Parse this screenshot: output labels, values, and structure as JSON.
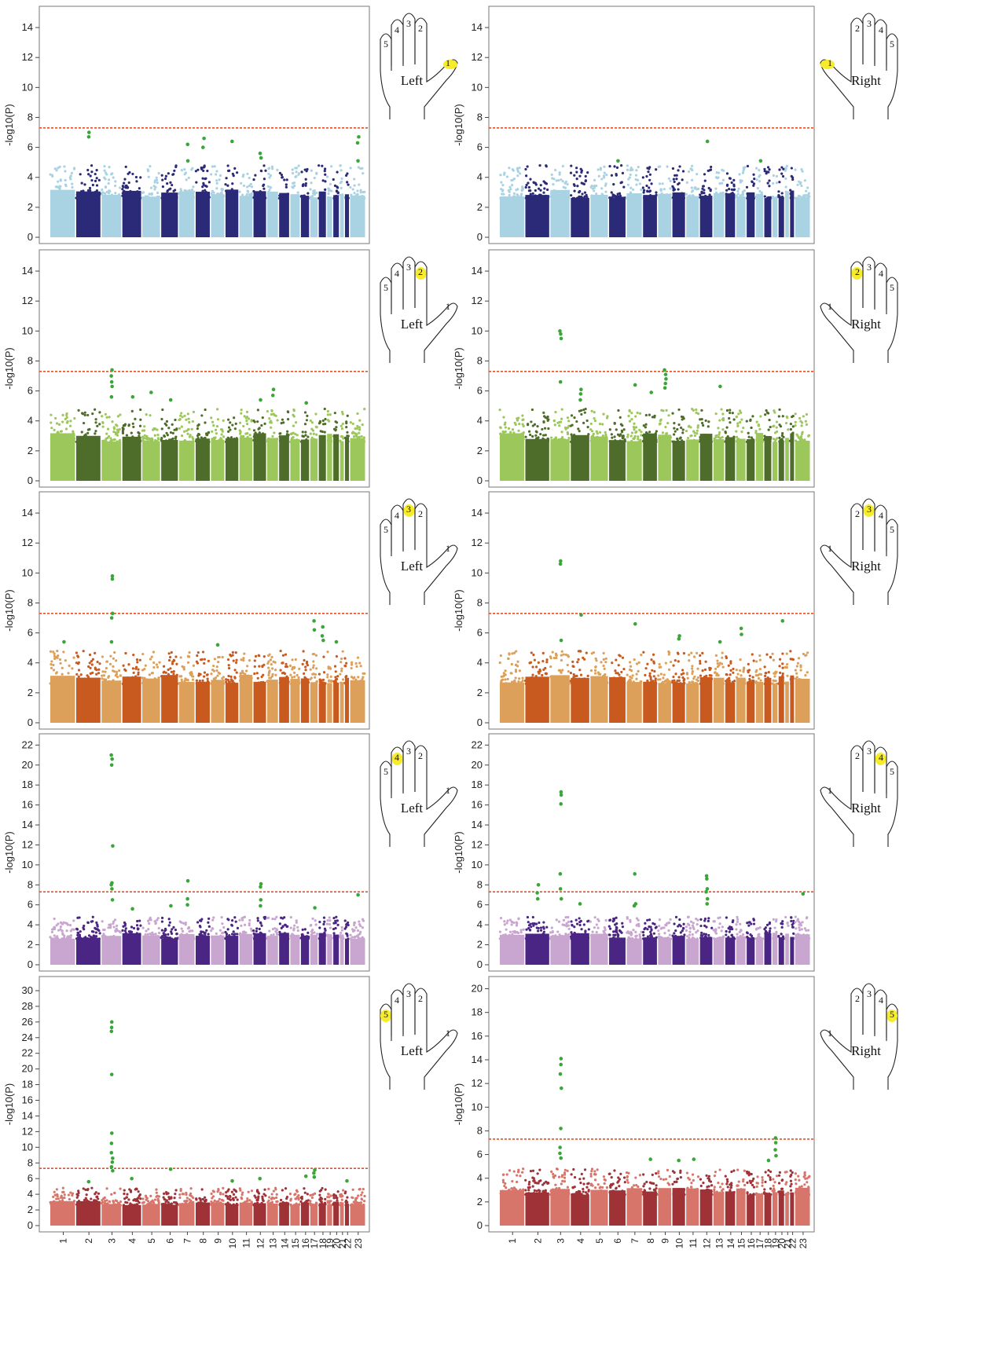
{
  "chromosomes": [
    "1",
    "2",
    "3",
    "4",
    "5",
    "6",
    "7",
    "8",
    "9",
    "10",
    "11",
    "12",
    "13",
    "14",
    "15",
    "16",
    "17",
    "18",
    "19",
    "20",
    "21",
    "22",
    "23"
  ],
  "threshold": 7.3,
  "ylabel": "-log10(P)",
  "palettes": {
    "digit1": {
      "light": "#a9d3e3",
      "dark": "#2a2a78"
    },
    "digit2": {
      "light": "#9cc75a",
      "dark": "#4e6d2a"
    },
    "digit3": {
      "light": "#dca05a",
      "dark": "#c95a1f"
    },
    "digit4": {
      "light": "#c9a6cf",
      "dark": "#4b2584"
    },
    "digit5": {
      "light": "#d8756a",
      "dark": "#9e3237"
    },
    "hit": "#3aa63a",
    "threshold_line": "#e0522a",
    "highlight": "#f7ec2c"
  },
  "hands": {
    "left": "Left",
    "right": "Right"
  },
  "chart_data": [
    {
      "type": "scatter",
      "digit": 1,
      "side": "Left",
      "ylabel": "-log10(P)",
      "ylim": [
        0,
        15
      ],
      "yticks": [
        0,
        2,
        4,
        6,
        8,
        10,
        12,
        14
      ],
      "threshold": 7.3,
      "peaks": [
        {
          "chr": 2,
          "y": 7.0
        },
        {
          "chr": 2,
          "y": 6.7
        },
        {
          "chr": 7,
          "y": 6.2
        },
        {
          "chr": 7,
          "y": 5.1
        },
        {
          "chr": 8,
          "y": 6.6
        },
        {
          "chr": 8,
          "y": 6.0
        },
        {
          "chr": 10,
          "y": 6.4
        },
        {
          "chr": 12,
          "y": 5.6
        },
        {
          "chr": 12,
          "y": 5.3
        },
        {
          "chr": 23,
          "y": 6.7
        },
        {
          "chr": 23,
          "y": 6.3
        },
        {
          "chr": 23,
          "y": 5.1
        }
      ]
    },
    {
      "type": "scatter",
      "digit": 1,
      "side": "Right",
      "ylabel": "-log10(P)",
      "ylim": [
        0,
        15
      ],
      "yticks": [
        0,
        2,
        4,
        6,
        8,
        10,
        12,
        14
      ],
      "threshold": 7.3,
      "peaks": [
        {
          "chr": 6,
          "y": 5.1
        },
        {
          "chr": 12,
          "y": 6.4
        },
        {
          "chr": 17,
          "y": 5.1
        }
      ]
    },
    {
      "type": "scatter",
      "digit": 2,
      "side": "Left",
      "ylabel": "-log10(P)",
      "ylim": [
        0,
        15
      ],
      "yticks": [
        0,
        2,
        4,
        6,
        8,
        10,
        12,
        14
      ],
      "threshold": 7.3,
      "peaks": [
        {
          "chr": 3,
          "y": 7.4
        },
        {
          "chr": 3,
          "y": 7.0
        },
        {
          "chr": 3,
          "y": 6.6
        },
        {
          "chr": 3,
          "y": 6.3
        },
        {
          "chr": 3,
          "y": 5.6
        },
        {
          "chr": 4,
          "y": 5.6
        },
        {
          "chr": 5,
          "y": 5.9
        },
        {
          "chr": 6,
          "y": 5.4
        },
        {
          "chr": 12,
          "y": 5.4
        },
        {
          "chr": 13,
          "y": 6.1
        },
        {
          "chr": 13,
          "y": 5.7
        },
        {
          "chr": 16,
          "y": 5.2
        }
      ]
    },
    {
      "type": "scatter",
      "digit": 2,
      "side": "Right",
      "ylabel": "-log10(P)",
      "ylim": [
        0,
        15
      ],
      "yticks": [
        0,
        2,
        4,
        6,
        8,
        10,
        12,
        14
      ],
      "threshold": 7.3,
      "peaks": [
        {
          "chr": 3,
          "y": 10.0
        },
        {
          "chr": 3,
          "y": 9.8
        },
        {
          "chr": 3,
          "y": 9.5
        },
        {
          "chr": 3,
          "y": 6.6
        },
        {
          "chr": 4,
          "y": 6.1
        },
        {
          "chr": 4,
          "y": 5.8
        },
        {
          "chr": 4,
          "y": 5.4
        },
        {
          "chr": 7,
          "y": 6.4
        },
        {
          "chr": 9,
          "y": 7.4
        },
        {
          "chr": 9,
          "y": 7.1
        },
        {
          "chr": 9,
          "y": 6.8
        },
        {
          "chr": 9,
          "y": 6.5
        },
        {
          "chr": 9,
          "y": 6.2
        },
        {
          "chr": 8,
          "y": 5.9
        },
        {
          "chr": 13,
          "y": 6.3
        }
      ]
    },
    {
      "type": "scatter",
      "digit": 3,
      "side": "Left",
      "ylabel": "-log10(P)",
      "ylim": [
        0,
        15
      ],
      "yticks": [
        0,
        2,
        4,
        6,
        8,
        10,
        12,
        14
      ],
      "threshold": 7.3,
      "peaks": [
        {
          "chr": 3,
          "y": 9.8
        },
        {
          "chr": 3,
          "y": 9.6
        },
        {
          "chr": 3,
          "y": 7.3
        },
        {
          "chr": 3,
          "y": 7.0
        },
        {
          "chr": 3,
          "y": 5.4
        },
        {
          "chr": 1,
          "y": 5.4
        },
        {
          "chr": 9,
          "y": 5.2
        },
        {
          "chr": 17,
          "y": 6.8
        },
        {
          "chr": 17,
          "y": 6.2
        },
        {
          "chr": 18,
          "y": 6.4
        },
        {
          "chr": 18,
          "y": 5.8
        },
        {
          "chr": 18,
          "y": 5.5
        },
        {
          "chr": 20,
          "y": 5.4
        }
      ]
    },
    {
      "type": "scatter",
      "digit": 3,
      "side": "Right",
      "ylabel": "-log10(P)",
      "ylim": [
        0,
        15
      ],
      "yticks": [
        0,
        2,
        4,
        6,
        8,
        10,
        12,
        14
      ],
      "threshold": 7.3,
      "peaks": [
        {
          "chr": 3,
          "y": 10.8
        },
        {
          "chr": 3,
          "y": 10.6
        },
        {
          "chr": 3,
          "y": 5.5
        },
        {
          "chr": 4,
          "y": 7.2
        },
        {
          "chr": 7,
          "y": 6.6
        },
        {
          "chr": 10,
          "y": 5.8
        },
        {
          "chr": 10,
          "y": 5.6
        },
        {
          "chr": 15,
          "y": 6.3
        },
        {
          "chr": 15,
          "y": 5.9
        },
        {
          "chr": 20,
          "y": 6.8
        },
        {
          "chr": 13,
          "y": 5.4
        }
      ]
    },
    {
      "type": "scatter",
      "digit": 4,
      "side": "Left",
      "ylabel": "-log10(P)",
      "ylim": [
        0,
        22.5
      ],
      "yticks": [
        0,
        2,
        4,
        6,
        8,
        10,
        12,
        14,
        16,
        18,
        20,
        22
      ],
      "threshold": 7.3,
      "peaks": [
        {
          "chr": 3,
          "y": 21.0
        },
        {
          "chr": 3,
          "y": 20.6
        },
        {
          "chr": 3,
          "y": 20.0
        },
        {
          "chr": 3,
          "y": 11.9
        },
        {
          "chr": 3,
          "y": 8.2
        },
        {
          "chr": 3,
          "y": 8.0
        },
        {
          "chr": 3,
          "y": 7.6
        },
        {
          "chr": 3,
          "y": 6.5
        },
        {
          "chr": 7,
          "y": 8.4
        },
        {
          "chr": 7,
          "y": 6.6
        },
        {
          "chr": 7,
          "y": 6.0
        },
        {
          "chr": 6,
          "y": 5.9
        },
        {
          "chr": 12,
          "y": 8.1
        },
        {
          "chr": 12,
          "y": 7.8
        },
        {
          "chr": 12,
          "y": 6.5
        },
        {
          "chr": 12,
          "y": 5.9
        },
        {
          "chr": 23,
          "y": 7.0
        },
        {
          "chr": 4,
          "y": 5.6
        },
        {
          "chr": 17,
          "y": 5.7
        }
      ]
    },
    {
      "type": "scatter",
      "digit": 4,
      "side": "Right",
      "ylabel": "-log10(P)",
      "ylim": [
        0,
        22.5
      ],
      "yticks": [
        0,
        2,
        4,
        6,
        8,
        10,
        12,
        14,
        16,
        18,
        20,
        22
      ],
      "threshold": 7.3,
      "peaks": [
        {
          "chr": 3,
          "y": 17.3
        },
        {
          "chr": 3,
          "y": 17.0
        },
        {
          "chr": 3,
          "y": 16.1
        },
        {
          "chr": 3,
          "y": 9.1
        },
        {
          "chr": 3,
          "y": 7.6
        },
        {
          "chr": 3,
          "y": 6.6
        },
        {
          "chr": 2,
          "y": 8.0
        },
        {
          "chr": 2,
          "y": 7.2
        },
        {
          "chr": 2,
          "y": 6.6
        },
        {
          "chr": 7,
          "y": 9.1
        },
        {
          "chr": 7,
          "y": 6.1
        },
        {
          "chr": 7,
          "y": 5.9
        },
        {
          "chr": 12,
          "y": 8.9
        },
        {
          "chr": 12,
          "y": 8.6
        },
        {
          "chr": 12,
          "y": 7.6
        },
        {
          "chr": 12,
          "y": 7.3
        },
        {
          "chr": 12,
          "y": 6.6
        },
        {
          "chr": 12,
          "y": 6.1
        },
        {
          "chr": 23,
          "y": 7.1
        },
        {
          "chr": 4,
          "y": 6.1
        }
      ]
    },
    {
      "type": "scatter",
      "digit": 5,
      "side": "Left",
      "ylabel": "-log10(P)",
      "ylim": [
        0,
        31
      ],
      "yticks": [
        0,
        2,
        4,
        6,
        8,
        10,
        12,
        14,
        16,
        18,
        20,
        22,
        24,
        26,
        28,
        30
      ],
      "threshold": 7.3,
      "peaks": [
        {
          "chr": 3,
          "y": 26.0
        },
        {
          "chr": 3,
          "y": 25.3
        },
        {
          "chr": 3,
          "y": 24.8
        },
        {
          "chr": 3,
          "y": 19.3
        },
        {
          "chr": 3,
          "y": 11.8
        },
        {
          "chr": 3,
          "y": 10.5
        },
        {
          "chr": 3,
          "y": 9.3
        },
        {
          "chr": 3,
          "y": 8.6
        },
        {
          "chr": 3,
          "y": 8.1
        },
        {
          "chr": 3,
          "y": 7.5
        },
        {
          "chr": 3,
          "y": 7.0
        },
        {
          "chr": 6,
          "y": 7.2
        },
        {
          "chr": 17,
          "y": 7.1
        },
        {
          "chr": 17,
          "y": 6.7
        },
        {
          "chr": 17,
          "y": 6.2
        },
        {
          "chr": 16,
          "y": 6.3
        },
        {
          "chr": 12,
          "y": 6.0
        },
        {
          "chr": 4,
          "y": 6.0
        },
        {
          "chr": 2,
          "y": 5.6
        },
        {
          "chr": 10,
          "y": 5.7
        },
        {
          "chr": 22,
          "y": 5.7
        }
      ]
    },
    {
      "type": "scatter",
      "digit": 5,
      "side": "Right",
      "ylabel": "-log10(P)",
      "ylim": [
        0,
        20.5
      ],
      "yticks": [
        0,
        2,
        4,
        6,
        8,
        10,
        12,
        14,
        16,
        18,
        20
      ],
      "threshold": 7.3,
      "peaks": [
        {
          "chr": 3,
          "y": 14.1
        },
        {
          "chr": 3,
          "y": 13.6
        },
        {
          "chr": 3,
          "y": 12.8
        },
        {
          "chr": 3,
          "y": 11.6
        },
        {
          "chr": 3,
          "y": 8.2
        },
        {
          "chr": 3,
          "y": 6.6
        },
        {
          "chr": 3,
          "y": 6.1
        },
        {
          "chr": 3,
          "y": 5.7
        },
        {
          "chr": 19,
          "y": 7.4
        },
        {
          "chr": 19,
          "y": 7.0
        },
        {
          "chr": 19,
          "y": 6.4
        },
        {
          "chr": 19,
          "y": 5.9
        },
        {
          "chr": 18,
          "y": 5.5
        },
        {
          "chr": 8,
          "y": 5.6
        },
        {
          "chr": 10,
          "y": 5.5
        },
        {
          "chr": 11,
          "y": 5.6
        }
      ]
    }
  ]
}
